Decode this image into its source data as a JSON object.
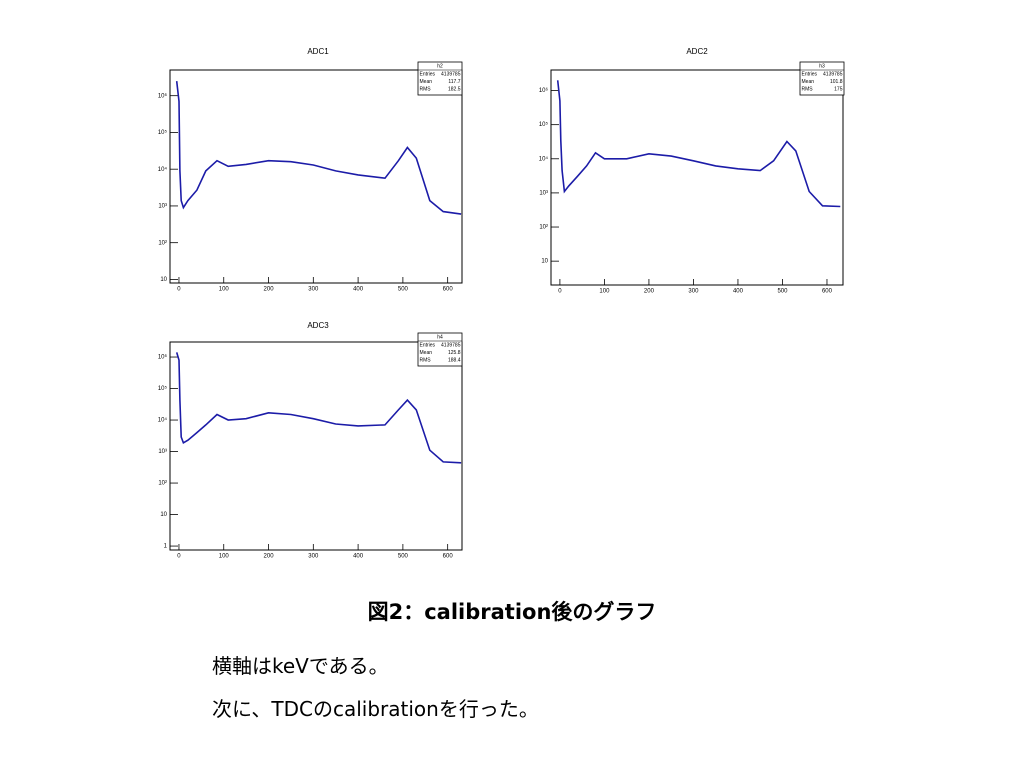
{
  "chart_data": [
    {
      "type": "line",
      "title": "ADC1",
      "log_y": true,
      "xlim": [
        -20,
        632
      ],
      "ylim": [
        8,
        5000000
      ],
      "xticks": [
        0,
        100,
        200,
        300,
        400,
        500,
        600
      ],
      "yticks": [
        10,
        {
          "value": 100,
          "label": "10²"
        },
        {
          "value": 1000,
          "label": "10³"
        },
        {
          "value": 10000,
          "label": "10⁴"
        },
        {
          "value": 100000,
          "label": "10⁵"
        },
        {
          "value": 1000000,
          "label": "10⁶"
        }
      ],
      "x": [
        -5,
        0,
        2,
        5,
        10,
        20,
        40,
        60,
        85,
        110,
        150,
        200,
        250,
        300,
        350,
        400,
        460,
        490,
        510,
        530,
        560,
        590,
        630
      ],
      "series": [
        {
          "color": "#1c1ca8",
          "values": [
            2500000,
            700000,
            9000,
            1400,
            900,
            1400,
            2700,
            9000,
            17000,
            12000,
            13500,
            17000,
            16000,
            13000,
            9000,
            7000,
            5700,
            17000,
            39000,
            20000,
            1400,
            700,
            600
          ]
        }
      ],
      "stats": {
        "name": "h2",
        "rows": [
          {
            "label": "Entries",
            "value": "4139785"
          },
          {
            "label": "Mean",
            "value": "117.7"
          },
          {
            "label": "RMS",
            "value": "182.5"
          }
        ]
      }
    },
    {
      "type": "line",
      "title": "ADC2",
      "log_y": true,
      "xlim": [
        -20,
        636
      ],
      "ylim": [
        2,
        4000000
      ],
      "xticks": [
        0,
        100,
        200,
        300,
        400,
        500,
        600
      ],
      "yticks": [
        10,
        {
          "value": 100,
          "label": "10²"
        },
        {
          "value": 1000,
          "label": "10³"
        },
        {
          "value": 10000,
          "label": "10⁴"
        },
        {
          "value": 100000,
          "label": "10⁵"
        },
        {
          "value": 1000000,
          "label": "10⁶"
        }
      ],
      "x": [
        -5,
        0,
        2,
        5,
        10,
        20,
        40,
        60,
        80,
        100,
        150,
        200,
        250,
        300,
        350,
        400,
        450,
        480,
        510,
        530,
        560,
        590,
        630
      ],
      "series": [
        {
          "color": "#1c1ca8",
          "values": [
            2000000,
            500000,
            34000,
            4500,
            1100,
            1600,
            3100,
            6200,
            15000,
            10000,
            10000,
            14000,
            12000,
            8700,
            6200,
            5100,
            4500,
            8700,
            32000,
            17000,
            1100,
            420,
            400
          ]
        }
      ],
      "stats": {
        "name": "h3",
        "rows": [
          {
            "label": "Entries",
            "value": "4139785"
          },
          {
            "label": "Mean",
            "value": "101.8"
          },
          {
            "label": "RMS",
            "value": "175"
          }
        ]
      }
    },
    {
      "type": "line",
      "title": "ADC3",
      "log_y": true,
      "xlim": [
        -20,
        632
      ],
      "ylim": [
        0.75,
        3000000
      ],
      "xticks": [
        0,
        100,
        200,
        300,
        400,
        500,
        600
      ],
      "yticks": [
        1,
        10,
        {
          "value": 100,
          "label": "10²"
        },
        {
          "value": 1000,
          "label": "10³"
        },
        {
          "value": 10000,
          "label": "10⁴"
        },
        {
          "value": 100000,
          "label": "10⁵"
        },
        {
          "value": 1000000,
          "label": "10⁶"
        }
      ],
      "x": [
        -5,
        0,
        2,
        5,
        10,
        20,
        40,
        60,
        85,
        110,
        150,
        200,
        250,
        300,
        350,
        400,
        460,
        490,
        510,
        530,
        560,
        590,
        630
      ],
      "series": [
        {
          "color": "#1c1ca8",
          "values": [
            1400000,
            800000,
            43000,
            2900,
            1900,
            2300,
            4000,
            7000,
            15000,
            10000,
            11000,
            17000,
            15000,
            11000,
            7500,
            6500,
            7000,
            21000,
            43000,
            21000,
            1100,
            470,
            440
          ]
        }
      ],
      "stats": {
        "name": "h4",
        "rows": [
          {
            "label": "Entries",
            "value": "4139785"
          },
          {
            "label": "Mean",
            "value": "125.8"
          },
          {
            "label": "RMS",
            "value": "188.4"
          }
        ]
      }
    }
  ],
  "caption": "図2：calibration後のグラフ",
  "notes": [
    "横軸はkeVである。",
    "次に、TDCのcalibrationを行った。"
  ]
}
